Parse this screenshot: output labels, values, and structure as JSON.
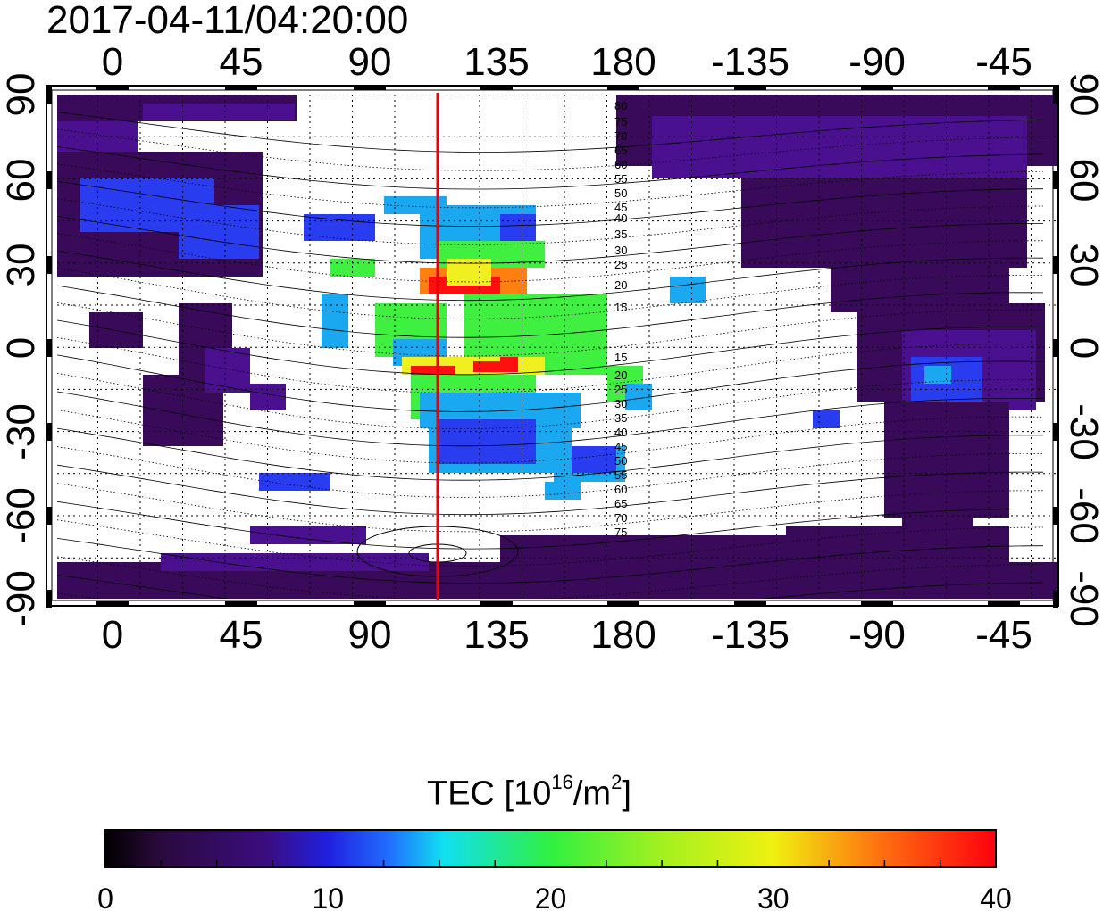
{
  "title": "2017-04-11/04:20:00",
  "map": {
    "top_lon_labels": [
      "0",
      "45",
      "90",
      "135",
      "180",
      "-135",
      "-90",
      "-45"
    ],
    "bottom_lon_labels": [
      "0",
      "45",
      "90",
      "135",
      "180",
      "-135",
      "-90",
      "-45"
    ],
    "left_lat_labels": [
      "90",
      "60",
      "30",
      "0",
      "-30",
      "-60",
      "-90"
    ],
    "right_lat_labels": [
      "90",
      "60",
      "30",
      "0",
      "-30",
      "-60",
      "-90"
    ],
    "contour_labels": [
      "80",
      "75",
      "70",
      "65",
      "60",
      "55",
      "50",
      "45",
      "40",
      "35",
      "30",
      "25",
      "20",
      "15",
      "15",
      "20",
      "25",
      "30",
      "35",
      "40",
      "45",
      "50",
      "55",
      "60",
      "65",
      "70",
      "75"
    ],
    "marker_line_color": "#e8000b",
    "land_color": "#2d0b3e",
    "colors": {
      "dark_purple": "#3a0a5a",
      "purple": "#4b1090",
      "blue": "#2a3cf0",
      "light_blue": "#1aa8f0",
      "cyan": "#10e0e0",
      "green": "#40f040",
      "yellow": "#f0f020",
      "orange": "#ff8010",
      "red": "#ff1010"
    }
  },
  "colorbar": {
    "title_prefix": "TEC  [10",
    "title_exp1": "16",
    "title_mid": "/m",
    "title_exp2": "2",
    "title_suffix": "]",
    "tick_labels": [
      "0",
      "10",
      "20",
      "30",
      "40"
    ],
    "min": 0,
    "max": 40
  }
}
